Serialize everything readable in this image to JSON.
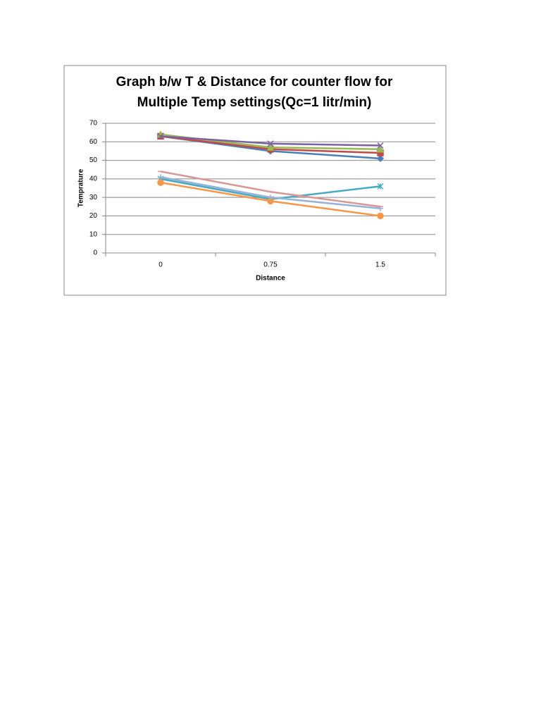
{
  "chart_data": {
    "type": "line",
    "title": [
      "Graph b/w T & Distance for counter flow for",
      "Multiple Temp settings(Qc=1 litr/min)"
    ],
    "x_label": "Distance",
    "y_label": "Temprature",
    "categories": [
      "0",
      "0.75",
      "1.5"
    ],
    "ylim": [
      0,
      70
    ],
    "yticks": [
      0,
      10,
      20,
      30,
      40,
      50,
      60,
      70
    ],
    "grid": true,
    "series": [
      {
        "color": "#4a7ebb",
        "marker": "diamond",
        "values": [
          63,
          55,
          51
        ]
      },
      {
        "color": "#be4b48",
        "marker": "square",
        "values": [
          63,
          56,
          54
        ]
      },
      {
        "color": "#98b954",
        "marker": "triangle",
        "values": [
          64,
          57,
          56
        ]
      },
      {
        "color": "#7d60a0",
        "marker": "x",
        "values": [
          63,
          59,
          58
        ]
      },
      {
        "color": "#46aac5",
        "marker": "star",
        "values": [
          40,
          29,
          36
        ]
      },
      {
        "color": "#f79646",
        "marker": "circle",
        "values": [
          38,
          28,
          20
        ]
      },
      {
        "color": "#95b3d7",
        "marker": "plus",
        "values": [
          41,
          30,
          24
        ]
      },
      {
        "color": "#d99694",
        "marker": "dash",
        "values": [
          44,
          33,
          25
        ]
      }
    ]
  }
}
